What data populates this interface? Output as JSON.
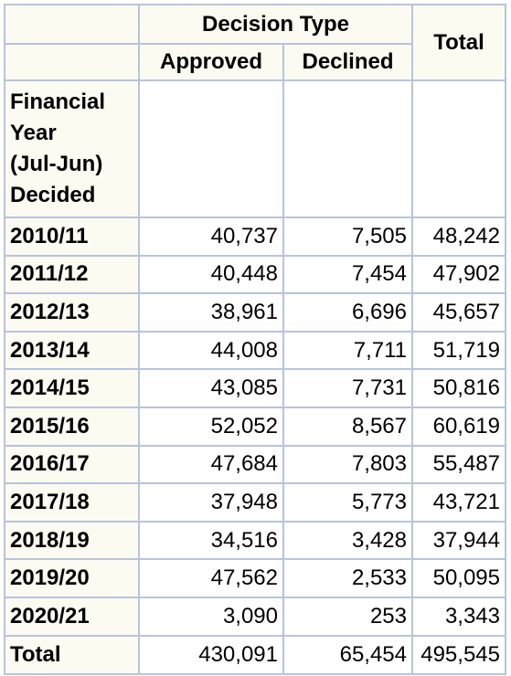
{
  "header": {
    "decision_type": "Decision Type",
    "total": "Total",
    "approved": "Approved",
    "declined": "Declined",
    "fy_line1": "Financial",
    "fy_line2": "Year",
    "fy_line3": "(Jul-Jun)",
    "fy_line4": "Decided"
  },
  "rows": [
    {
      "year": "2010/11",
      "approved": "40,737",
      "declined": "7,505",
      "total": "48,242"
    },
    {
      "year": "2011/12",
      "approved": "40,448",
      "declined": "7,454",
      "total": "47,902"
    },
    {
      "year": "2012/13",
      "approved": "38,961",
      "declined": "6,696",
      "total": "45,657"
    },
    {
      "year": "2013/14",
      "approved": "44,008",
      "declined": "7,711",
      "total": "51,719"
    },
    {
      "year": "2014/15",
      "approved": "43,085",
      "declined": "7,731",
      "total": "50,816"
    },
    {
      "year": "2015/16",
      "approved": "52,052",
      "declined": "8,567",
      "total": "60,619"
    },
    {
      "year": "2016/17",
      "approved": "47,684",
      "declined": "7,803",
      "total": "55,487"
    },
    {
      "year": "2017/18",
      "approved": "37,948",
      "declined": "5,773",
      "total": "43,721"
    },
    {
      "year": "2018/19",
      "approved": "34,516",
      "declined": "3,428",
      "total": "37,944"
    },
    {
      "year": "2019/20",
      "approved": "47,562",
      "declined": "2,533",
      "total": "50,095"
    },
    {
      "year": "2020/21",
      "approved": "3,090",
      "declined": "253",
      "total": "3,343"
    }
  ],
  "totals": {
    "label": "Total",
    "approved": "430,091",
    "declined": "65,454",
    "total": "495,545"
  }
}
